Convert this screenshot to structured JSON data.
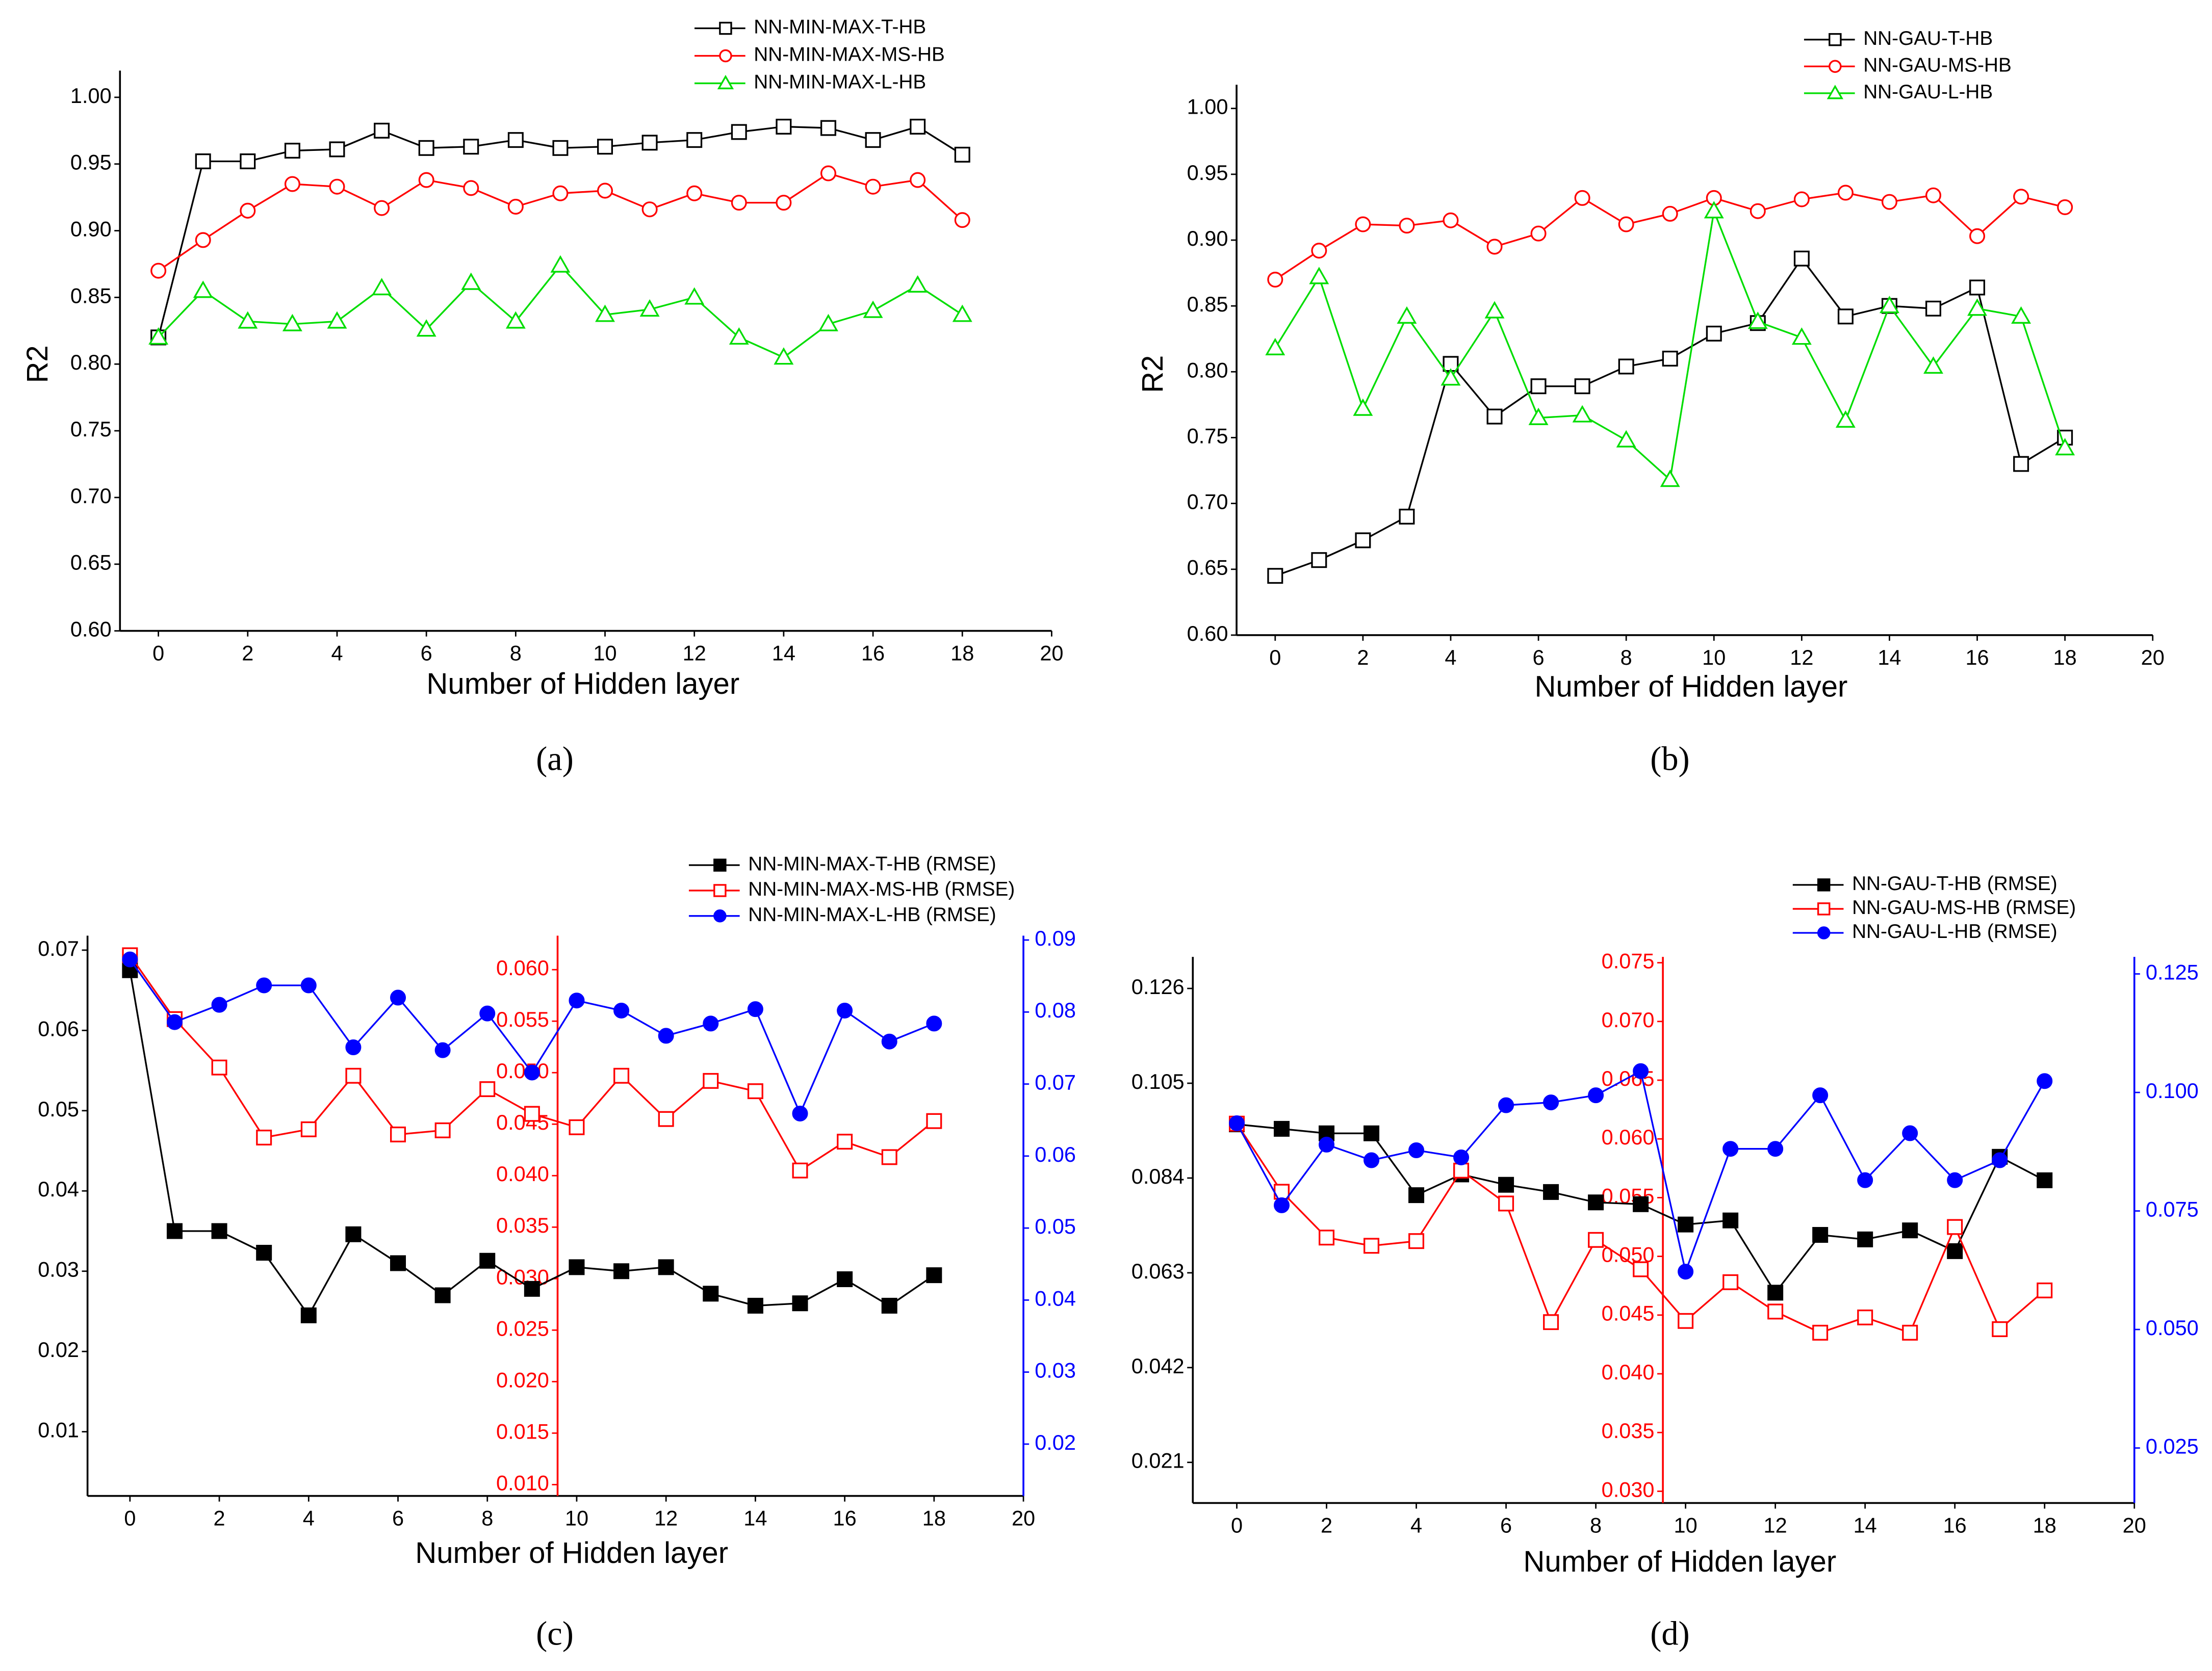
{
  "chart_data": [
    {
      "type": "line",
      "caption": "(a)",
      "x_label": "Number of Hidden layer",
      "y_label": "R2",
      "xlim": [
        -0.86,
        20
      ],
      "xticks": [
        0,
        2,
        4,
        6,
        8,
        10,
        12,
        14,
        16,
        18,
        20
      ],
      "ylim": [
        0.6,
        1.02
      ],
      "yticks": [
        {
          "value": 0.6,
          "label": "0.60"
        },
        0.65,
        {
          "value": 0.7,
          "label": "0.70"
        },
        0.75,
        {
          "value": 0.8,
          "label": "0.80"
        },
        0.85,
        {
          "value": 0.9,
          "label": "0.90"
        },
        0.95,
        {
          "value": 1,
          "label": "1.00"
        }
      ],
      "x": [
        0,
        1,
        2,
        3,
        4,
        5,
        6,
        7,
        8,
        9,
        10,
        11,
        12,
        13,
        14,
        15,
        16,
        17,
        18
      ],
      "series": [
        {
          "name": "NN-MIN-MAX-T-HB",
          "color": "#000000",
          "marker": "square-open",
          "values": [
            0.82,
            0.952,
            0.952,
            0.96,
            0.961,
            0.975,
            0.962,
            0.963,
            0.968,
            0.962,
            0.963,
            0.966,
            0.968,
            0.974,
            0.978,
            0.977,
            0.968,
            0.978,
            0.957
          ]
        },
        {
          "name": "NN-MIN-MAX-MS-HB",
          "color": "#ff0000",
          "marker": "circle-open",
          "values": [
            0.87,
            0.893,
            0.915,
            0.935,
            0.933,
            0.917,
            0.938,
            0.932,
            0.918,
            0.928,
            0.93,
            0.916,
            0.928,
            0.921,
            0.921,
            0.943,
            0.933,
            0.938,
            0.908
          ]
        },
        {
          "name": "NN-MIN-MAX-L-HB",
          "color": "#00dd00",
          "marker": "triangle-open",
          "values": [
            0.82,
            0.855,
            0.832,
            0.83,
            0.832,
            0.857,
            0.826,
            0.861,
            0.832,
            0.874,
            0.837,
            0.841,
            0.85,
            0.82,
            0.805,
            0.83,
            0.84,
            0.859,
            0.837
          ]
        }
      ]
    },
    {
      "type": "line",
      "caption": "(b)",
      "x_label": "Number of Hidden layer",
      "y_label": "R2",
      "xlim": [
        -0.88,
        20
      ],
      "xticks": [
        0,
        2,
        4,
        6,
        8,
        10,
        12,
        14,
        16,
        18,
        20
      ],
      "ylim": [
        0.6,
        1.018
      ],
      "yticks": [
        {
          "value": 0.6,
          "label": "0.60"
        },
        0.65,
        {
          "value": 0.7,
          "label": "0.70"
        },
        0.75,
        {
          "value": 0.8,
          "label": "0.80"
        },
        0.85,
        {
          "value": 0.9,
          "label": "0.90"
        },
        0.95,
        {
          "value": 1,
          "label": "1.00"
        }
      ],
      "x": [
        0,
        1,
        2,
        3,
        4,
        5,
        6,
        7,
        8,
        9,
        10,
        11,
        12,
        13,
        14,
        15,
        16,
        17,
        18
      ],
      "series": [
        {
          "name": "NN-GAU-T-HB",
          "color": "#000000",
          "marker": "square-open",
          "values": [
            0.645,
            0.657,
            0.672,
            0.69,
            0.806,
            0.766,
            0.789,
            0.789,
            0.804,
            0.81,
            0.829,
            0.837,
            0.886,
            0.842,
            0.85,
            0.848,
            0.864,
            0.73,
            0.75
          ]
        },
        {
          "name": "NN-GAU-MS-HB",
          "color": "#ff0000",
          "marker": "circle-open",
          "values": [
            0.87,
            0.892,
            0.912,
            0.911,
            0.915,
            0.895,
            0.905,
            0.932,
            0.912,
            0.92,
            0.932,
            0.922,
            0.931,
            0.936,
            0.929,
            0.934,
            0.903,
            0.933,
            0.925
          ]
        },
        {
          "name": "NN-GAU-L-HB",
          "color": "#00dd00",
          "marker": "triangle-open",
          "values": [
            0.818,
            0.872,
            0.772,
            0.842,
            0.795,
            0.846,
            0.765,
            0.767,
            0.748,
            0.718,
            0.922,
            0.838,
            0.826,
            0.763,
            0.85,
            0.804,
            0.848,
            0.842,
            0.742
          ]
        }
      ]
    },
    {
      "type": "line",
      "caption": "(c)",
      "x_label": "Number of Hidden layer",
      "xlim": [
        -0.95,
        20
      ],
      "xticks": [
        0,
        2,
        4,
        6,
        8,
        10,
        12,
        14,
        16,
        18,
        20
      ],
      "ylim": [
        0.002,
        0.0718
      ],
      "yticks": [
        0.01,
        0.02,
        0.03,
        0.04,
        0.05,
        0.06,
        0.07
      ],
      "y2lim": [
        0.0089,
        0.0633
      ],
      "y2ticks": [
        {
          "value": 0.01,
          "label": "0.010"
        },
        0.015,
        {
          "value": 0.02,
          "label": "0.020"
        },
        0.025,
        {
          "value": 0.03,
          "label": "0.030"
        },
        0.035,
        {
          "value": 0.04,
          "label": "0.040"
        },
        0.045,
        {
          "value": 0.05,
          "label": "0.050"
        },
        0.055,
        {
          "value": 0.06,
          "label": "0.060"
        }
      ],
      "y3lim": [
        0.0128,
        0.0906
      ],
      "y3ticks": [
        0.02,
        0.03,
        0.04,
        0.05,
        0.06,
        0.07,
        0.08,
        0.09
      ],
      "x": [
        0,
        1,
        2,
        3,
        4,
        5,
        6,
        7,
        8,
        9,
        10,
        11,
        12,
        13,
        14,
        15,
        16,
        17,
        18
      ],
      "series": [
        {
          "name": "NN-MIN-MAX-T-HB (RMSE)",
          "color": "#000000",
          "marker": "square-filled",
          "values": [
            0.0675,
            0.035,
            0.035,
            0.0323,
            0.0245,
            0.0346,
            0.031,
            0.027,
            0.0313,
            0.0278,
            0.0305,
            0.03,
            0.0305,
            0.0272,
            0.0257,
            0.026,
            0.029,
            0.0257,
            0.0295
          ]
        },
        {
          "name": "NN-MIN-MAX-MS-HB (RMSE)",
          "color": "#ff0000",
          "marker": "square-open",
          "axis": "y2",
          "values": [
            0.0614,
            0.0552,
            0.0505,
            0.0437,
            0.0445,
            0.0497,
            0.044,
            0.0444,
            0.0484,
            0.046,
            0.0447,
            0.0497,
            0.0455,
            0.0492,
            0.0482,
            0.0405,
            0.0433,
            0.0418,
            0.0453
          ]
        },
        {
          "name": "NN-MIN-MAX-L-HB (RMSE)",
          "color": "#0000ff",
          "marker": "circle-filled",
          "axis": "y3",
          "values": [
            0.0873,
            0.0786,
            0.081,
            0.0837,
            0.0837,
            0.0751,
            0.082,
            0.0747,
            0.0798,
            0.0716,
            0.0816,
            0.0802,
            0.0767,
            0.0784,
            0.0804,
            0.0659,
            0.0802,
            0.0759,
            0.0784
          ]
        }
      ]
    },
    {
      "type": "line",
      "caption": "(d)",
      "x_label": "Number of Hidden layer",
      "xlim": [
        -0.98,
        20
      ],
      "xticks": [
        0,
        2,
        4,
        6,
        8,
        10,
        12,
        14,
        16,
        18,
        20
      ],
      "ylim": [
        0.012,
        0.133
      ],
      "yticks": [
        0.021,
        0.042,
        0.063,
        0.084,
        0.105,
        0.126
      ],
      "y2lim": [
        0.029,
        0.0755
      ],
      "y2ticks": [
        {
          "value": 0.03,
          "label": "0.030"
        },
        0.035,
        {
          "value": 0.04,
          "label": "0.040"
        },
        0.045,
        {
          "value": 0.05,
          "label": "0.050"
        },
        0.055,
        {
          "value": 0.06,
          "label": "0.060"
        },
        0.065,
        {
          "value": 0.07,
          "label": "0.070"
        },
        0.075
      ],
      "y3lim": [
        0.0134,
        0.1286
      ],
      "y3ticks": [
        0.025,
        {
          "value": 0.05,
          "label": "0.050"
        },
        0.075,
        {
          "value": 0.1,
          "label": "0.100"
        },
        0.125
      ],
      "x": [
        0,
        1,
        2,
        3,
        4,
        5,
        6,
        7,
        8,
        9,
        10,
        11,
        12,
        13,
        14,
        15,
        16,
        17,
        18
      ],
      "series": [
        {
          "name": "NN-GAU-T-HB (RMSE)",
          "color": "#000000",
          "marker": "square-filled",
          "values": [
            0.0959,
            0.0949,
            0.0939,
            0.0939,
            0.0802,
            0.0848,
            0.0825,
            0.0809,
            0.0786,
            0.0782,
            0.0737,
            0.0746,
            0.0586,
            0.0714,
            0.0704,
            0.0724,
            0.0678,
            0.0887,
            0.0835
          ]
        },
        {
          "name": "NN-GAU-MS-HB (RMSE)",
          "color": "#ff0000",
          "marker": "square-open",
          "axis": "y2",
          "values": [
            0.0613,
            0.0555,
            0.0516,
            0.0509,
            0.0513,
            0.0573,
            0.0545,
            0.0444,
            0.0514,
            0.0489,
            0.0445,
            0.0478,
            0.0453,
            0.0435,
            0.0448,
            0.0435,
            0.0525,
            0.0438,
            0.0471
          ]
        },
        {
          "name": "NN-GAU-L-HB (RMSE)",
          "color": "#0000ff",
          "marker": "circle-filled",
          "axis": "y3",
          "values": [
            0.0935,
            0.0762,
            0.089,
            0.0857,
            0.0878,
            0.0863,
            0.0973,
            0.0979,
            0.0994,
            0.1045,
            0.0622,
            0.0881,
            0.0881,
            0.0994,
            0.0815,
            0.0914,
            0.0815,
            0.0857,
            0.1024
          ]
        }
      ]
    }
  ]
}
